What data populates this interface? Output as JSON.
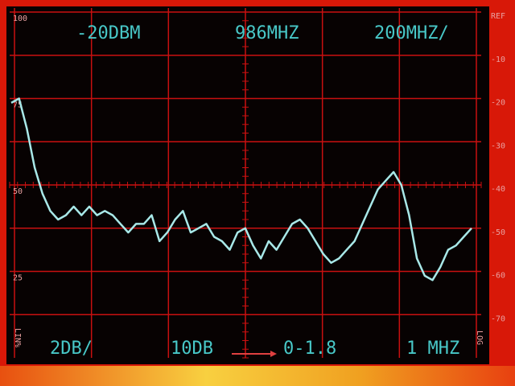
{
  "readouts": {
    "reference": "-20DBM",
    "center": "986MHZ",
    "span": "200MHZ/",
    "scale": "2DB/",
    "attenuation": "10DB",
    "marker": "0-1.8",
    "bandwidth": "1 MHZ",
    "lin_mode": "LIN%",
    "log_mode": "LOG"
  },
  "chart_data": {
    "type": "line",
    "series": [
      {
        "color": "#a8e8e8",
        "values": [
          -21,
          -20,
          -27,
          -36,
          -42,
          -46,
          -48,
          -47,
          -45,
          -47,
          -45,
          -47,
          -46,
          -47,
          -49,
          -51,
          -49,
          -49,
          -47,
          -53,
          -51,
          -48,
          -46,
          -51,
          -50,
          -49,
          -52,
          -53,
          -55,
          -51,
          -50,
          -54,
          -57,
          -53,
          -55,
          -52,
          -49,
          -48,
          -50,
          -53,
          -56,
          -58,
          -57,
          -55,
          -53,
          -49,
          -45,
          -41,
          -39,
          -37,
          -40,
          -47,
          -57,
          -61,
          -62,
          -59,
          -55,
          -54,
          -52,
          -50
        ]
      }
    ],
    "ylim": [
      -80,
      0
    ],
    "yticks": [
      {
        "value": 0,
        "label": "REF"
      },
      -10,
      -20,
      -30,
      -40,
      -50,
      -60,
      -70
    ],
    "y2lim": [
      0,
      100
    ],
    "y2ticks": [
      25,
      50,
      75,
      100
    ],
    "grid": true
  }
}
